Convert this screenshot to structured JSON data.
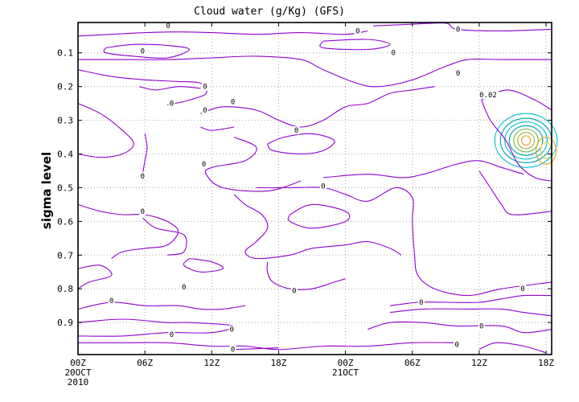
{
  "chart_data": {
    "type": "contour",
    "title": "Cloud water (g/Kg) (GFS)",
    "xlabel": "",
    "ylabel": "sigma level",
    "grid": true,
    "x_ticks": [
      {
        "label": "00Z",
        "sub": [
          "20OCT",
          "2010"
        ]
      },
      {
        "label": "06Z",
        "sub": []
      },
      {
        "label": "12Z",
        "sub": []
      },
      {
        "label": "18Z",
        "sub": []
      },
      {
        "label": "00Z",
        "sub": [
          "21OCT"
        ]
      },
      {
        "label": "06Z",
        "sub": []
      },
      {
        "label": "12Z",
        "sub": []
      },
      {
        "label": "18Z",
        "sub": []
      }
    ],
    "x_tick_hours": [
      0,
      6,
      12,
      18,
      24,
      30,
      36,
      42
    ],
    "x_range_hours": [
      0,
      42.5
    ],
    "y_ticks": [
      0.1,
      0.2,
      0.3,
      0.4,
      0.5,
      0.6,
      0.7,
      0.8,
      0.9
    ],
    "y_tick_labels": [
      "0.1",
      "0.2",
      "0.3",
      "0.4",
      "0.5",
      "0.6",
      "0.7",
      "0.8",
      "0.9"
    ],
    "ylim": [
      0.01,
      0.995
    ],
    "y_inverted": true,
    "colors": {
      "zero_contour": "#9000d0",
      "cyan": "#00c0d0",
      "teal": "#00a0a8",
      "green": "#60c040",
      "olive": "#a0b030",
      "orange": "#e0a020",
      "yellow": "#f0d040"
    },
    "contour_labels": [
      {
        "text": "0",
        "x": 8.1,
        "y": 0.02
      },
      {
        "text": "0",
        "x": 5.8,
        "y": 0.095
      },
      {
        "text": "0",
        "x": 25.1,
        "y": 0.035
      },
      {
        "text": "0",
        "x": 28.3,
        "y": 0.1
      },
      {
        "text": "0",
        "x": 34.1,
        "y": 0.03
      },
      {
        "text": "0",
        "x": 34.1,
        "y": 0.16
      },
      {
        "text": "0",
        "x": 11.4,
        "y": 0.2
      },
      {
        "text": "0",
        "x": 8.4,
        "y": 0.25
      },
      {
        "text": "0",
        "x": 13.9,
        "y": 0.245
      },
      {
        "text": "0",
        "x": 11.4,
        "y": 0.27
      },
      {
        "text": "0",
        "x": 19.6,
        "y": 0.33
      },
      {
        "text": "0",
        "x": 11.3,
        "y": 0.43
      },
      {
        "text": "0",
        "x": 5.8,
        "y": 0.465
      },
      {
        "text": "0",
        "x": 22.0,
        "y": 0.495
      },
      {
        "text": "0",
        "x": 5.8,
        "y": 0.57
      },
      {
        "text": "0",
        "x": 9.5,
        "y": 0.795
      },
      {
        "text": "0",
        "x": 3.0,
        "y": 0.835
      },
      {
        "text": "0",
        "x": 19.4,
        "y": 0.805
      },
      {
        "text": "0",
        "x": 30.8,
        "y": 0.84
      },
      {
        "text": "0",
        "x": 13.8,
        "y": 0.92
      },
      {
        "text": "0",
        "x": 36.2,
        "y": 0.91
      },
      {
        "text": "0",
        "x": 8.4,
        "y": 0.935
      },
      {
        "text": "0",
        "x": 13.9,
        "y": 0.98
      },
      {
        "text": "0",
        "x": 34.0,
        "y": 0.965
      },
      {
        "text": "0",
        "x": 39.9,
        "y": 0.8
      },
      {
        "text": "0.02",
        "x": 36.8,
        "y": 0.225
      }
    ],
    "zero_contours": [
      [
        [
          0,
          0.05
        ],
        [
          3,
          0.045
        ],
        [
          6,
          0.04
        ],
        [
          9,
          0.038
        ],
        [
          12,
          0.04
        ],
        [
          16,
          0.045
        ],
        [
          20,
          0.04
        ],
        [
          24,
          0.045
        ],
        [
          26,
          0.035
        ]
      ],
      [
        [
          2.5,
          0.085
        ],
        [
          5,
          0.075
        ],
        [
          8,
          0.078
        ],
        [
          10,
          0.09
        ],
        [
          8,
          0.115
        ],
        [
          5,
          0.11
        ],
        [
          2.5,
          0.1
        ],
        [
          2.5,
          0.085
        ]
      ],
      [
        [
          0,
          0.12
        ],
        [
          4,
          0.12
        ],
        [
          8,
          0.12
        ],
        [
          12,
          0.115
        ],
        [
          16,
          0.11
        ],
        [
          20,
          0.12
        ],
        [
          22,
          0.15
        ],
        [
          25,
          0.19
        ],
        [
          27,
          0.2
        ],
        [
          30,
          0.18
        ],
        [
          33,
          0.14
        ],
        [
          35,
          0.12
        ],
        [
          38,
          0.12
        ],
        [
          42.5,
          0.12
        ]
      ],
      [
        [
          22,
          0.065
        ],
        [
          26,
          0.06
        ],
        [
          28,
          0.075
        ],
        [
          26,
          0.09
        ],
        [
          22,
          0.085
        ],
        [
          22,
          0.065
        ]
      ],
      [
        [
          26.5,
          0.02
        ],
        [
          30,
          0.015
        ],
        [
          33,
          0.012
        ],
        [
          34,
          0.03
        ],
        [
          38,
          0.035
        ],
        [
          42.5,
          0.03
        ]
      ],
      [
        [
          0,
          0.15
        ],
        [
          3,
          0.17
        ],
        [
          6,
          0.18
        ],
        [
          9,
          0.185
        ],
        [
          11,
          0.19
        ],
        [
          11.5,
          0.22
        ],
        [
          10,
          0.24
        ],
        [
          8,
          0.255
        ]
      ],
      [
        [
          5.5,
          0.2
        ],
        [
          7,
          0.21
        ],
        [
          9,
          0.2
        ],
        [
          11,
          0.205
        ]
      ],
      [
        [
          11,
          0.28
        ],
        [
          13,
          0.26
        ],
        [
          16,
          0.27
        ],
        [
          18,
          0.3
        ],
        [
          20,
          0.32
        ],
        [
          22,
          0.3
        ],
        [
          24,
          0.26
        ],
        [
          26,
          0.25
        ],
        [
          28,
          0.22
        ],
        [
          30,
          0.21
        ],
        [
          32,
          0.2
        ]
      ],
      [
        [
          11,
          0.32
        ],
        [
          12,
          0.33
        ],
        [
          14,
          0.32
        ]
      ],
      [
        [
          17,
          0.37
        ],
        [
          18.5,
          0.35
        ],
        [
          21,
          0.34
        ],
        [
          23,
          0.36
        ],
        [
          22,
          0.39
        ],
        [
          20,
          0.4
        ],
        [
          17.5,
          0.39
        ],
        [
          17,
          0.37
        ]
      ],
      [
        [
          0,
          0.25
        ],
        [
          2,
          0.28
        ],
        [
          4,
          0.33
        ],
        [
          5,
          0.37
        ],
        [
          4,
          0.4
        ],
        [
          2,
          0.41
        ],
        [
          0,
          0.4
        ]
      ],
      [
        [
          6,
          0.34
        ],
        [
          6.2,
          0.38
        ],
        [
          6,
          0.42
        ],
        [
          5.8,
          0.46
        ]
      ],
      [
        [
          14,
          0.35
        ],
        [
          16,
          0.38
        ],
        [
          15,
          0.42
        ],
        [
          12,
          0.44
        ],
        [
          11.5,
          0.46
        ],
        [
          13,
          0.5
        ],
        [
          17,
          0.51
        ],
        [
          20,
          0.48
        ]
      ],
      [
        [
          22,
          0.47
        ],
        [
          26,
          0.46
        ],
        [
          29,
          0.47
        ],
        [
          31,
          0.46
        ],
        [
          34,
          0.43
        ],
        [
          36,
          0.42
        ],
        [
          38,
          0.44
        ],
        [
          40,
          0.46
        ]
      ],
      [
        [
          36,
          0.45
        ],
        [
          37,
          0.5
        ],
        [
          38,
          0.55
        ],
        [
          39,
          0.58
        ],
        [
          42.5,
          0.57
        ]
      ],
      [
        [
          16,
          0.5
        ],
        [
          19,
          0.5
        ],
        [
          22,
          0.5
        ],
        [
          24,
          0.52
        ],
        [
          26,
          0.54
        ],
        [
          28.5,
          0.5
        ],
        [
          30,
          0.53
        ],
        [
          30,
          0.6
        ],
        [
          30.2,
          0.7
        ],
        [
          30.5,
          0.76
        ],
        [
          32,
          0.8
        ],
        [
          35,
          0.82
        ],
        [
          38,
          0.8
        ],
        [
          42.5,
          0.78
        ]
      ],
      [
        [
          14,
          0.52
        ],
        [
          15,
          0.55
        ],
        [
          16.5,
          0.58
        ],
        [
          17,
          0.62
        ],
        [
          16,
          0.66
        ],
        [
          15,
          0.69
        ],
        [
          16,
          0.71
        ],
        [
          19,
          0.7
        ],
        [
          21,
          0.68
        ],
        [
          24,
          0.67
        ],
        [
          26,
          0.66
        ],
        [
          28,
          0.68
        ],
        [
          29,
          0.7
        ]
      ],
      [
        [
          19,
          0.58
        ],
        [
          21,
          0.55
        ],
        [
          24,
          0.57
        ],
        [
          24,
          0.6
        ],
        [
          21,
          0.62
        ],
        [
          19,
          0.6
        ],
        [
          19,
          0.58
        ]
      ],
      [
        [
          0,
          0.55
        ],
        [
          2,
          0.57
        ],
        [
          4,
          0.58
        ],
        [
          6,
          0.58
        ],
        [
          8,
          0.6
        ],
        [
          9,
          0.63
        ],
        [
          8,
          0.67
        ],
        [
          6,
          0.68
        ],
        [
          4,
          0.69
        ],
        [
          3,
          0.71
        ]
      ],
      [
        [
          5.8,
          0.59
        ],
        [
          7,
          0.62
        ],
        [
          9.5,
          0.64
        ],
        [
          9.5,
          0.69
        ],
        [
          8,
          0.7
        ]
      ],
      [
        [
          0,
          0.74
        ],
        [
          2,
          0.73
        ],
        [
          3,
          0.76
        ],
        [
          1,
          0.78
        ],
        [
          0,
          0.8
        ]
      ],
      [
        [
          10,
          0.71
        ],
        [
          12,
          0.72
        ],
        [
          13,
          0.74
        ],
        [
          11,
          0.75
        ],
        [
          9.5,
          0.73
        ],
        [
          10,
          0.71
        ]
      ],
      [
        [
          17,
          0.72
        ],
        [
          17,
          0.75
        ],
        [
          17.5,
          0.78
        ],
        [
          19,
          0.8
        ],
        [
          21,
          0.8
        ],
        [
          23,
          0.78
        ],
        [
          24,
          0.77
        ]
      ],
      [
        [
          0,
          0.86
        ],
        [
          3,
          0.84
        ],
        [
          6,
          0.85
        ],
        [
          9,
          0.85
        ],
        [
          11,
          0.86
        ],
        [
          13,
          0.86
        ],
        [
          15,
          0.85
        ]
      ],
      [
        [
          28,
          0.85
        ],
        [
          30.5,
          0.84
        ],
        [
          33,
          0.84
        ],
        [
          36,
          0.84
        ],
        [
          38,
          0.83
        ],
        [
          40,
          0.82
        ],
        [
          42.5,
          0.82
        ]
      ],
      [
        [
          28,
          0.87
        ],
        [
          31,
          0.86
        ],
        [
          35,
          0.86
        ],
        [
          38,
          0.86
        ],
        [
          40,
          0.87
        ],
        [
          42.5,
          0.88
        ]
      ],
      [
        [
          0,
          0.9
        ],
        [
          4,
          0.89
        ],
        [
          8,
          0.9
        ],
        [
          10,
          0.9
        ],
        [
          14,
          0.91
        ],
        [
          12,
          0.93
        ],
        [
          8,
          0.93
        ],
        [
          4,
          0.94
        ],
        [
          0,
          0.94
        ]
      ],
      [
        [
          26,
          0.92
        ],
        [
          28,
          0.9
        ],
        [
          31,
          0.9
        ],
        [
          34,
          0.91
        ],
        [
          38,
          0.91
        ],
        [
          40,
          0.93
        ],
        [
          42.5,
          0.92
        ]
      ],
      [
        [
          0,
          0.96
        ],
        [
          4,
          0.96
        ],
        [
          8,
          0.96
        ],
        [
          12,
          0.97
        ],
        [
          15,
          0.97
        ],
        [
          18,
          0.98
        ],
        [
          22,
          0.97
        ],
        [
          26,
          0.97
        ],
        [
          30,
          0.96
        ],
        [
          34,
          0.96
        ]
      ],
      [
        [
          14,
          0.98
        ],
        [
          18,
          0.975
        ]
      ],
      [
        [
          36,
          0.98
        ],
        [
          37.5,
          0.96
        ],
        [
          40,
          0.97
        ],
        [
          42,
          0.99
        ]
      ]
    ],
    "positive_blob": {
      "center_x": 40.2,
      "center_y": 0.36,
      "levels": [
        {
          "color": "cyan",
          "rx": 2.8,
          "ry": 0.08
        },
        {
          "color": "teal",
          "rx": 2.3,
          "ry": 0.066
        },
        {
          "color": "cyan",
          "rx": 1.9,
          "ry": 0.055
        },
        {
          "color": "teal",
          "rx": 1.5,
          "ry": 0.044
        },
        {
          "color": "green",
          "rx": 1.1,
          "ry": 0.034
        },
        {
          "color": "olive",
          "rx": 0.75,
          "ry": 0.024
        },
        {
          "color": "orange",
          "rx": 0.4,
          "ry": 0.014
        }
      ],
      "secondary": {
        "center_x": 42.0,
        "center_y": 0.39,
        "levels": [
          {
            "color": "orange",
            "rx": 0.9,
            "ry": 0.04
          },
          {
            "color": "yellow",
            "rx": 0.5,
            "ry": 0.024
          }
        ]
      }
    }
  }
}
